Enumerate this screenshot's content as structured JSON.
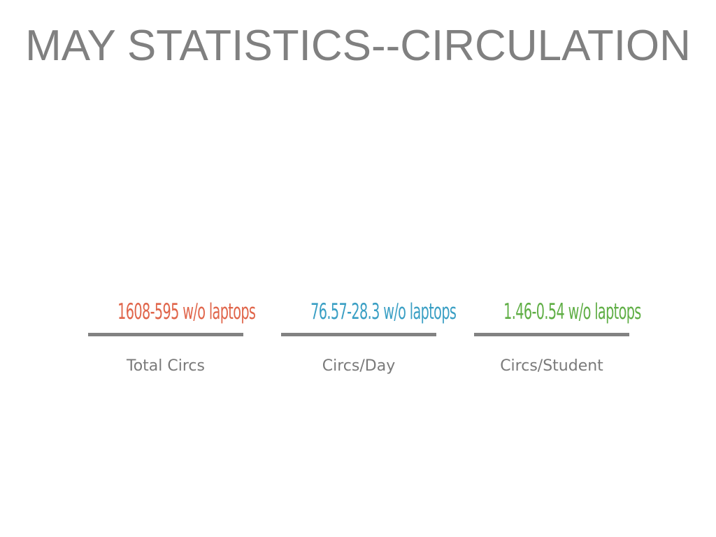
{
  "slide": {
    "title": "MAY STATISTICS--CIRCULATION",
    "stats": [
      {
        "value": "1608-595 w/o laptops",
        "label": "Total Circs",
        "color": "#e0654a"
      },
      {
        "value": "76.57-28.3 w/o laptops",
        "label": "Circs/Day",
        "color": "#3a9fc4"
      },
      {
        "value": "1.46-0.54 w/o laptops",
        "label": "Circs/Student",
        "color": "#5fae45"
      }
    ],
    "colors": {
      "title": "#808080",
      "rule": "#828282",
      "label": "#7a7a7a"
    }
  }
}
